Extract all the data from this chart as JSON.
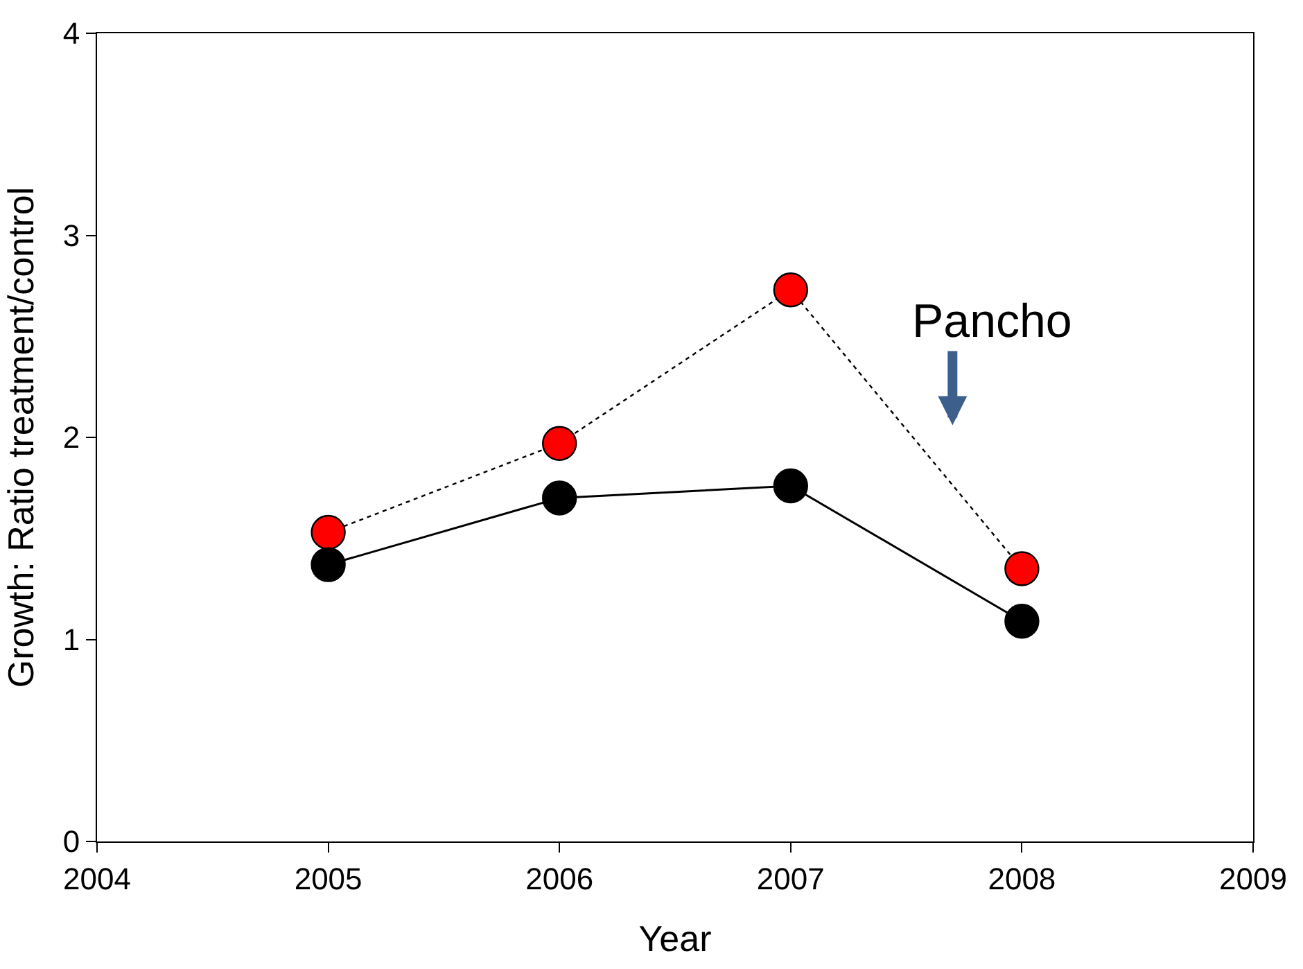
{
  "chart_data": {
    "type": "line",
    "xlabel": "Year",
    "ylabel": "Growth: Ratio treatment/control",
    "x": [
      2005,
      2006,
      2007,
      2008
    ],
    "series": [
      {
        "color": "#ff0000",
        "values": [
          1.53,
          1.97,
          2.73,
          1.35
        ],
        "line_style": "dotted"
      },
      {
        "color": "#000000",
        "values": [
          1.37,
          1.7,
          1.76,
          1.09
        ],
        "line_style": "solid"
      }
    ],
    "xlim": [
      2004,
      2009
    ],
    "xticks": [
      2004,
      2005,
      2006,
      2007,
      2008,
      2009
    ],
    "ylim": [
      0,
      4
    ],
    "yticks": [
      0,
      1,
      2,
      3,
      4
    ],
    "marker": "circle",
    "annotations": [
      "Pancho"
    ]
  }
}
